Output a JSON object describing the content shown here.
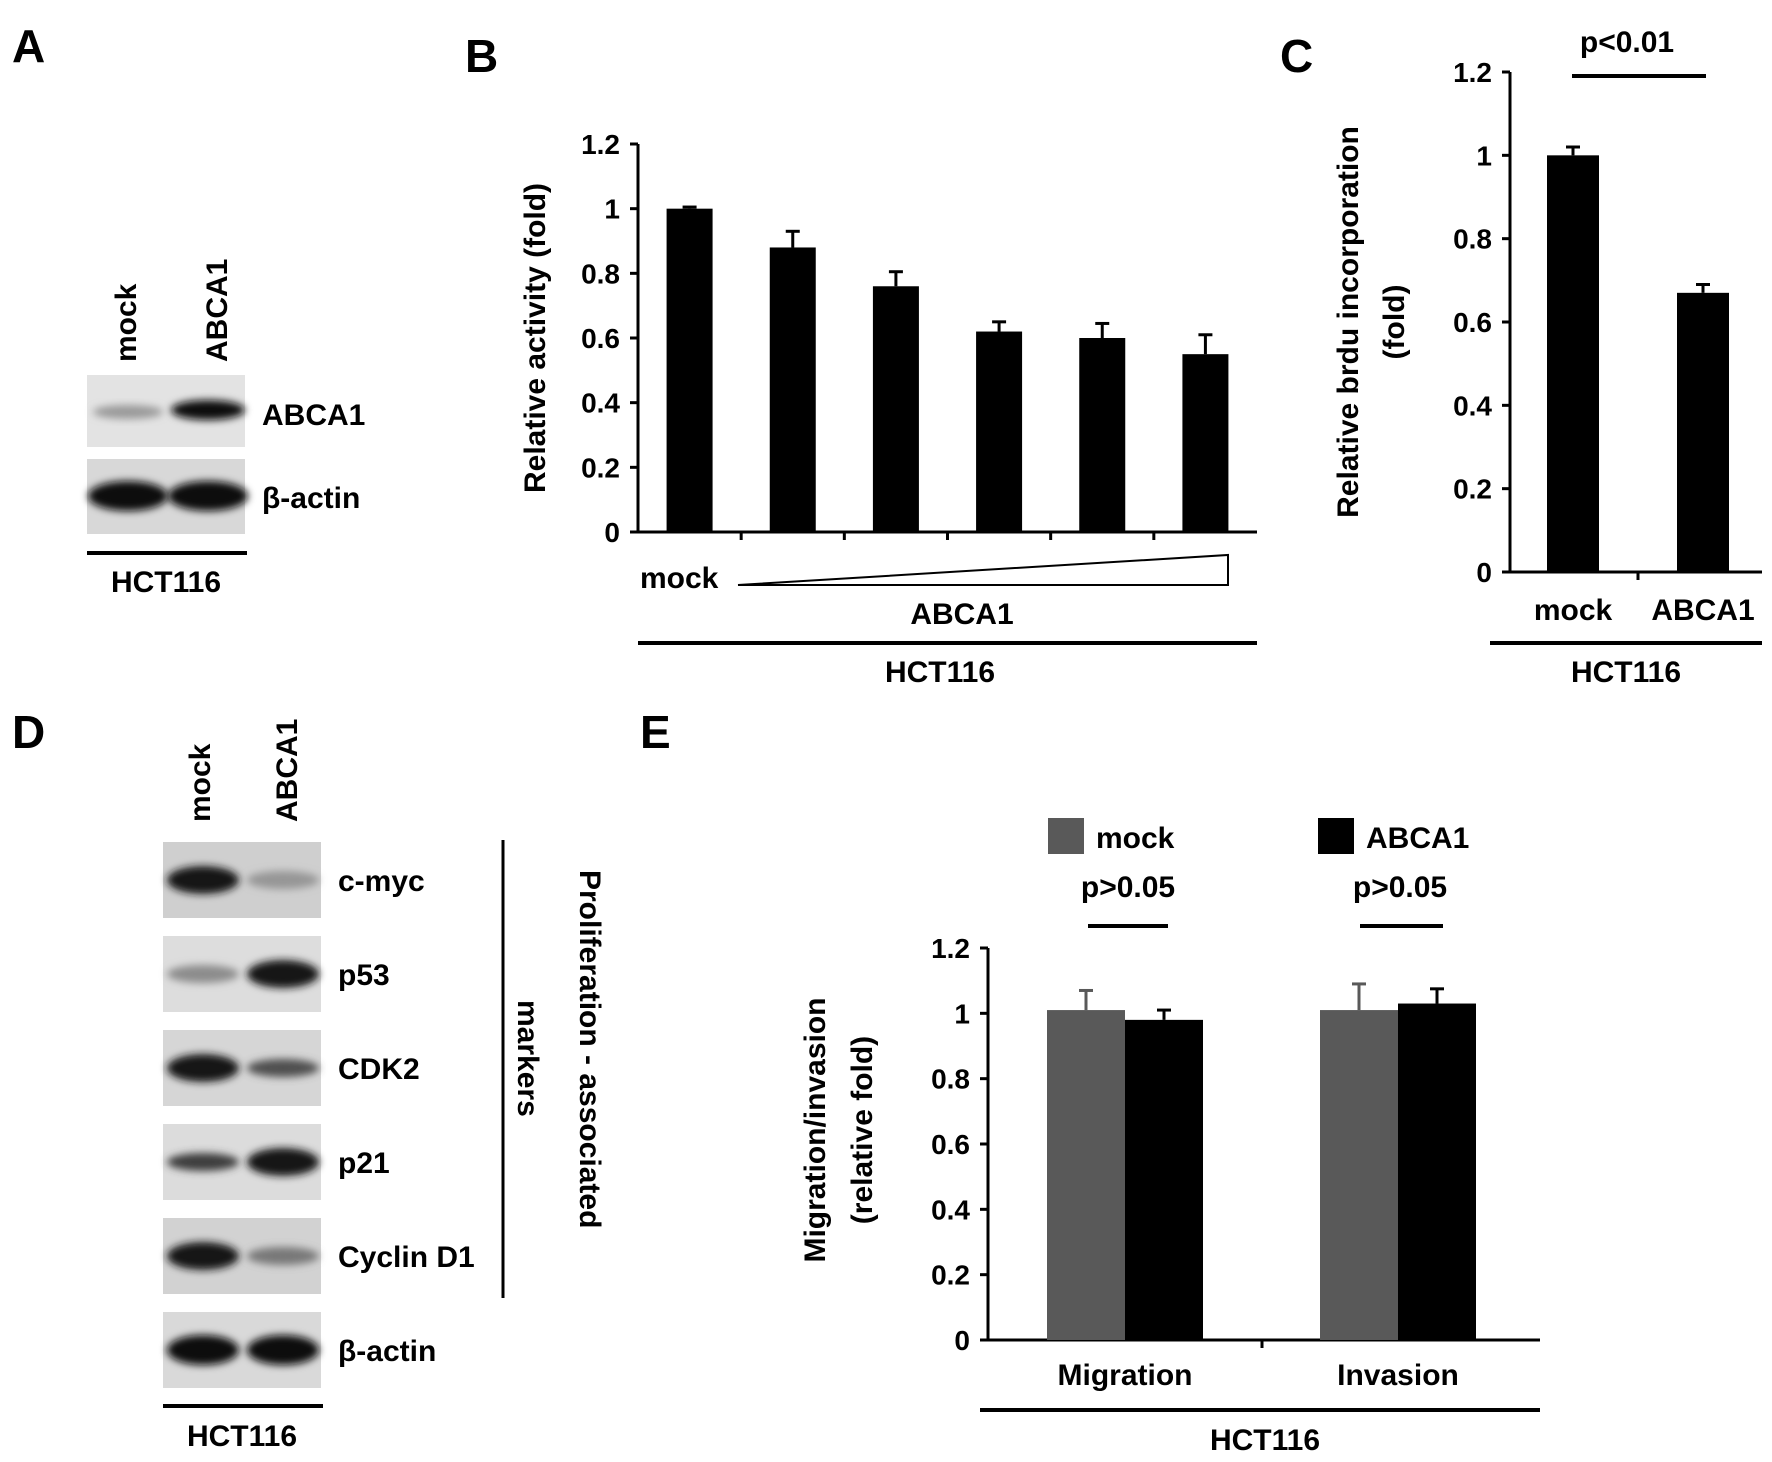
{
  "panels": {
    "A": {
      "letter": "A",
      "lanes": [
        "mock",
        "ABCA1"
      ],
      "rows": [
        {
          "label": "ABCA1",
          "colors": {
            "lane_bg": "#e2e2e2"
          }
        },
        {
          "label": "β-actin",
          "colors": {
            "lane_bg": "#dcdcdc"
          }
        }
      ],
      "cell_line": "HCT116"
    },
    "B": {
      "letter": "B",
      "mock_label": "mock",
      "treatment_label": "ABCA1",
      "cell_line": "HCT116"
    },
    "C": {
      "letter": "C",
      "pvalue": "p<0.01",
      "cell_line": "HCT116"
    },
    "D": {
      "letter": "D",
      "lanes": [
        "mock",
        "ABCA1"
      ],
      "rows": [
        {
          "label": "c-myc"
        },
        {
          "label": "p53"
        },
        {
          "label": "CDK2"
        },
        {
          "label": "p21"
        },
        {
          "label": "Cyclin D1"
        },
        {
          "label": "β-actin"
        }
      ],
      "bracket_label_line1": "Proliferation - associated",
      "bracket_label_line2": "markers",
      "cell_line": "HCT116"
    },
    "E": {
      "letter": "E",
      "pvalues": [
        "p>0.05",
        "p>0.05"
      ],
      "cell_line": "HCT116"
    }
  },
  "chart_data": [
    {
      "panel": "B",
      "type": "bar",
      "categories": [
        "",
        "",
        "",
        "",
        "",
        ""
      ],
      "values": [
        1.0,
        0.88,
        0.76,
        0.62,
        0.6,
        0.55
      ],
      "errors": [
        0.005,
        0.05,
        0.045,
        0.03,
        0.045,
        0.06
      ],
      "ylabel": "Relative activity (fold)",
      "yticks": [
        "0",
        "0.2",
        "0.4",
        "0.6",
        "0.8",
        "1",
        "1.2"
      ],
      "ylim": [
        0,
        1.2
      ],
      "colors": {
        "bar": "#000000"
      }
    },
    {
      "panel": "C",
      "type": "bar",
      "categories": [
        "mock",
        "ABCA1"
      ],
      "values": [
        1.0,
        0.67
      ],
      "errors": [
        0.02,
        0.02
      ],
      "ylabel_line1": "Relative brdu incorporation",
      "ylabel_line2": "(fold)",
      "yticks": [
        "0",
        "0.2",
        "0.4",
        "0.6",
        "0.8",
        "1",
        "1.2"
      ],
      "ylim": [
        0,
        1.2
      ],
      "colors": {
        "bar": "#000000"
      }
    },
    {
      "panel": "E",
      "type": "bar",
      "categories": [
        "Migration",
        "Invasion"
      ],
      "series": [
        {
          "name": "mock",
          "values": [
            1.01,
            1.01
          ],
          "errors": [
            0.06,
            0.08
          ],
          "color": "#595959"
        },
        {
          "name": "ABCA1",
          "values": [
            0.98,
            1.03
          ],
          "errors": [
            0.03,
            0.045
          ],
          "color": "#000000"
        }
      ],
      "ylabel_line1": "Migration/invasion",
      "ylabel_line2": "(relative fold)",
      "yticks": [
        "0",
        "0.2",
        "0.4",
        "0.6",
        "0.8",
        "1",
        "1.2"
      ],
      "ylim": [
        0,
        1.2
      ],
      "legend": "top"
    }
  ]
}
